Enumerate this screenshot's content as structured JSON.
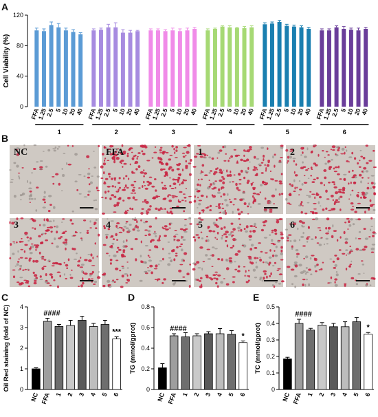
{
  "panels": {
    "A": "A",
    "B": "B",
    "C": "C",
    "D": "D",
    "E": "E"
  },
  "micrographs": [
    {
      "label": "NC",
      "density": 0.25
    },
    {
      "label": "FFA",
      "density": 1.0
    },
    {
      "label": "1",
      "density": 0.85
    },
    {
      "label": "2",
      "density": 0.8
    },
    {
      "label": "3",
      "density": 0.75
    },
    {
      "label": "4",
      "density": 0.7
    },
    {
      "label": "5",
      "density": 0.75
    },
    {
      "label": "6",
      "density": 0.55
    }
  ],
  "colors": {
    "groupA": [
      "#5b9bd5",
      "#a78be0",
      "#f08be8",
      "#a6d974",
      "#1a7fb0",
      "#6a3d9a"
    ],
    "cellRed": "#c8213f",
    "NC": "#000000",
    "FFA": "#9e9e9e",
    "treated": [
      "#6e6e6e",
      "#c9c9c9",
      "#5a5a5a",
      "#bdbdbd",
      "#6e6e6e",
      "#ffffff"
    ]
  },
  "chart_data": [
    {
      "id": "A",
      "type": "bar",
      "ylabel": "Cell Viability (%)",
      "ylim": [
        0,
        120
      ],
      "yticks": [
        0,
        40,
        80,
        120
      ],
      "grid": false,
      "groups": [
        {
          "name": "1",
          "categories": [
            "FFA",
            "1.25",
            "2.5",
            "5",
            "10",
            "20",
            "40"
          ],
          "values": [
            100,
            99,
            107,
            104,
            100,
            98,
            95
          ],
          "errors": [
            3,
            3,
            4,
            5,
            3,
            3,
            2
          ]
        },
        {
          "name": "2",
          "categories": [
            "FFA",
            "1.25",
            "2.5",
            "5",
            "10",
            "20",
            "40"
          ],
          "values": [
            100,
            101,
            104,
            104,
            97,
            97,
            99
          ],
          "errors": [
            2,
            2,
            4,
            6,
            4,
            3,
            1
          ]
        },
        {
          "name": "3",
          "categories": [
            "FFA",
            "1.25",
            "2.5",
            "5",
            "10",
            "20",
            "40"
          ],
          "values": [
            100,
            100,
            99,
            100,
            99,
            100,
            102
          ],
          "errors": [
            2,
            2,
            2,
            3,
            3,
            3,
            2
          ]
        },
        {
          "name": "4",
          "categories": [
            "FFA",
            "1.25",
            "2.5",
            "5",
            "10",
            "20",
            "40"
          ],
          "values": [
            100,
            102,
            105,
            104,
            103,
            103,
            104
          ],
          "errors": [
            2,
            1,
            1,
            2,
            1,
            2,
            2
          ]
        },
        {
          "name": "5",
          "categories": [
            "FFA",
            "1.25",
            "2.5",
            "5",
            "10",
            "20",
            "40"
          ],
          "values": [
            108,
            109,
            111,
            106,
            105,
            104,
            102
          ],
          "errors": [
            2,
            2,
            2,
            2,
            2,
            2,
            2
          ]
        },
        {
          "name": "6",
          "categories": [
            "FFA",
            "1.25",
            "2.5",
            "5",
            "10",
            "20",
            "40"
          ],
          "values": [
            100,
            100,
            104,
            102,
            101,
            100,
            102
          ],
          "errors": [
            2,
            2,
            2,
            3,
            2,
            3,
            2
          ]
        }
      ]
    },
    {
      "id": "C",
      "type": "bar",
      "ylabel": "Oil Red staining (fold of NC)",
      "ylim": [
        0,
        4
      ],
      "yticks": [
        0,
        1,
        2,
        3,
        4
      ],
      "categories": [
        "NC",
        "FFA",
        "1",
        "2",
        "3",
        "4",
        "5",
        "6"
      ],
      "values": [
        1.0,
        3.3,
        3.05,
        3.1,
        3.35,
        3.05,
        3.15,
        2.45
      ],
      "errors": [
        0.05,
        0.15,
        0.1,
        0.25,
        0.2,
        0.15,
        0.2,
        0.1
      ],
      "annotations": [
        {
          "category": "FFA",
          "text": "####"
        },
        {
          "category": "6",
          "text": "***"
        }
      ]
    },
    {
      "id": "D",
      "type": "bar",
      "ylabel": "TG (mmol/gprot)",
      "ylim": [
        0,
        0.8
      ],
      "yticks": [
        0.0,
        0.2,
        0.4,
        0.6,
        0.8
      ],
      "categories": [
        "NC",
        "FFA",
        "1",
        "2",
        "3",
        "4",
        "5",
        "6"
      ],
      "values": [
        0.21,
        0.52,
        0.51,
        0.52,
        0.54,
        0.54,
        0.535,
        0.455
      ],
      "errors": [
        0.04,
        0.02,
        0.04,
        0.02,
        0.02,
        0.05,
        0.035,
        0.015
      ],
      "annotations": [
        {
          "category": "FFA",
          "text": "####"
        },
        {
          "category": "6",
          "text": "*"
        }
      ]
    },
    {
      "id": "E",
      "type": "bar",
      "ylabel": "TC (mmol/gprot)",
      "ylim": [
        0,
        0.5
      ],
      "yticks": [
        0.0,
        0.1,
        0.2,
        0.3,
        0.4,
        0.5
      ],
      "categories": [
        "NC",
        "FFA",
        "1",
        "2",
        "3",
        "4",
        "5",
        "6"
      ],
      "values": [
        0.185,
        0.4,
        0.36,
        0.39,
        0.38,
        0.38,
        0.41,
        0.335
      ],
      "errors": [
        0.01,
        0.025,
        0.01,
        0.015,
        0.02,
        0.03,
        0.025,
        0.01
      ],
      "annotations": [
        {
          "category": "FFA",
          "text": "####"
        },
        {
          "category": "6",
          "text": "*"
        }
      ]
    }
  ]
}
